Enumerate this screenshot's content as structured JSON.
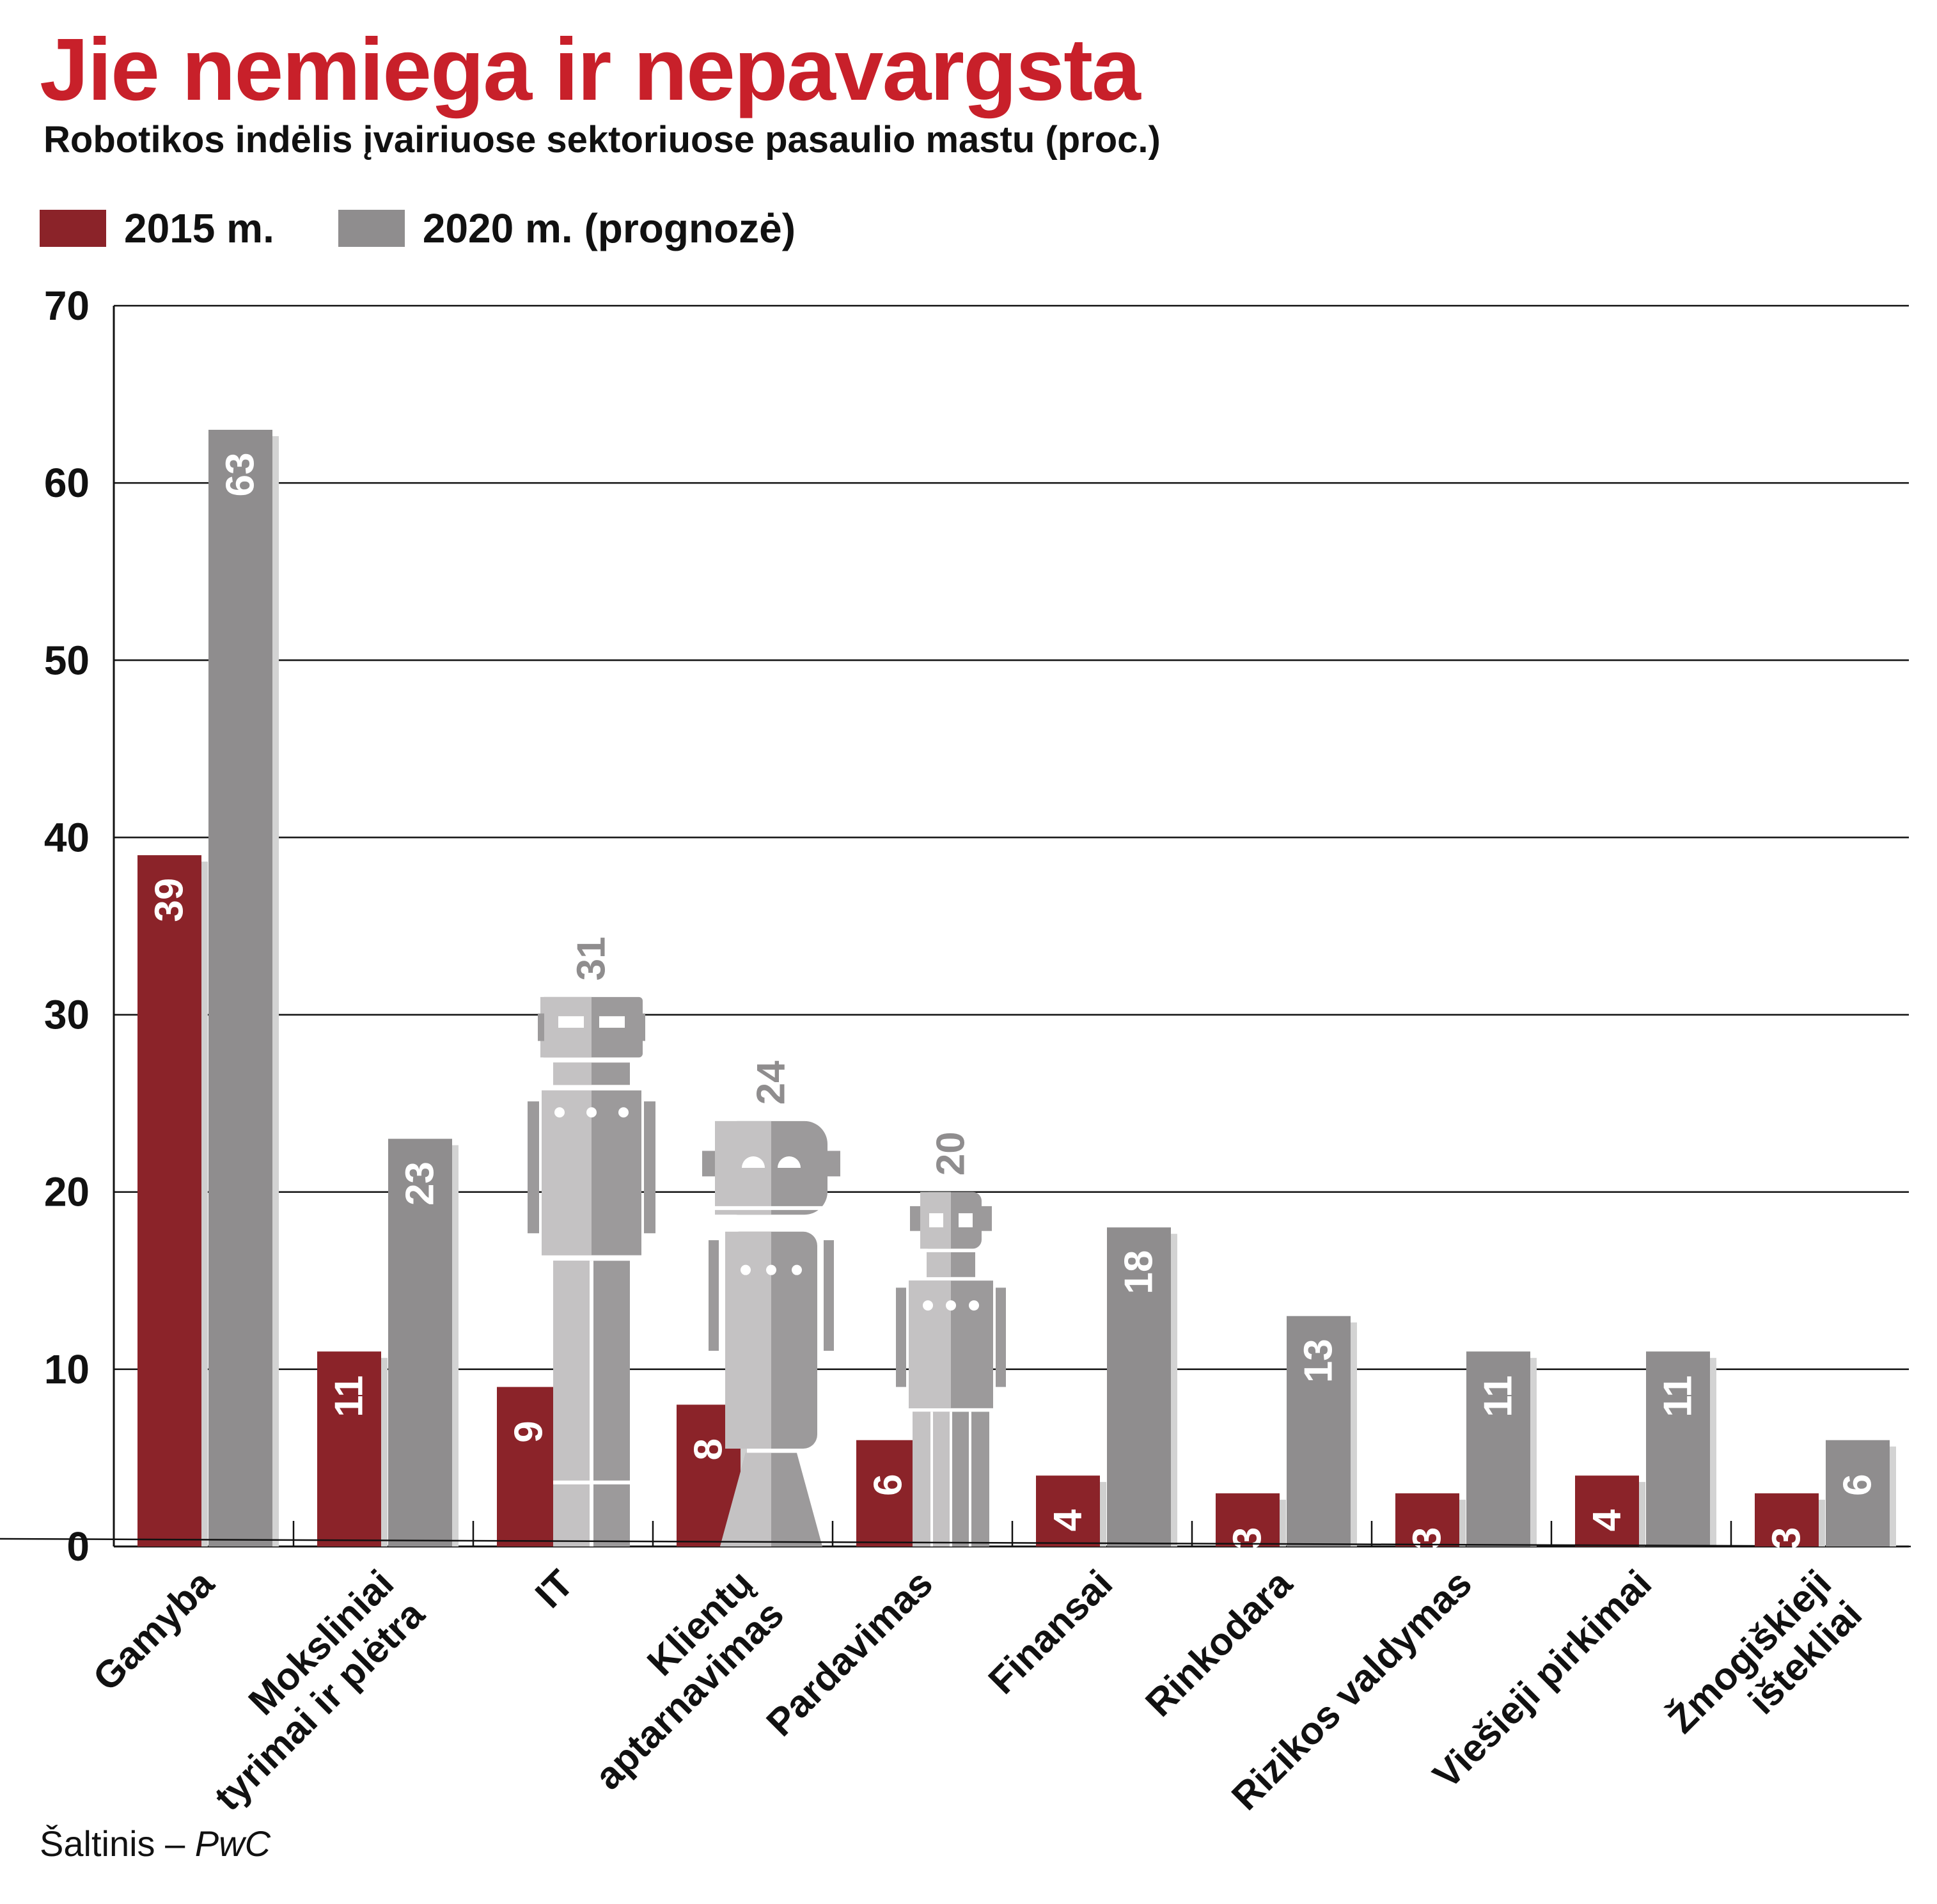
{
  "title": "Jie nemiega ir nepavargsta",
  "subtitle": "Robotikos indėlis įvairiuose sektoriuose pasaulio mastu (proc.)",
  "legend": [
    {
      "label": "2015 m.",
      "color": "#8b2329"
    },
    {
      "label": "2020 m. (prognozė)",
      "color": "#8f8d8e"
    }
  ],
  "source": {
    "prefix": "Šaltinis – ",
    "org": "PwC"
  },
  "chart_data": {
    "type": "bar",
    "ylim": [
      0,
      70
    ],
    "yticks": [
      0,
      10,
      20,
      30,
      40,
      50,
      60,
      70
    ],
    "grid": true,
    "legend_position": "top-left",
    "categories": [
      [
        "Gamyba"
      ],
      [
        "Moksliniai",
        "tyrimai ir plėtra"
      ],
      [
        "IT"
      ],
      [
        "Klientų",
        "aptarnavimas"
      ],
      [
        "Pardavimas"
      ],
      [
        "Finansai"
      ],
      [
        "Rinkodara"
      ],
      [
        "Rizikos valdymas"
      ],
      [
        "Viešieji pirkimai"
      ],
      [
        "Žmogiškieji",
        "ištekliai"
      ]
    ],
    "series": [
      {
        "name": "2015 m.",
        "color": "#8b2329",
        "values": [
          39,
          11,
          9,
          8,
          6,
          4,
          3,
          3,
          4,
          3
        ]
      },
      {
        "name": "2020 m. (prognozė)",
        "color": "#8f8d8e",
        "values": [
          63,
          23,
          31,
          24,
          20,
          18,
          13,
          11,
          11,
          6
        ]
      }
    ],
    "robot_categories": [
      2,
      3,
      4
    ]
  }
}
